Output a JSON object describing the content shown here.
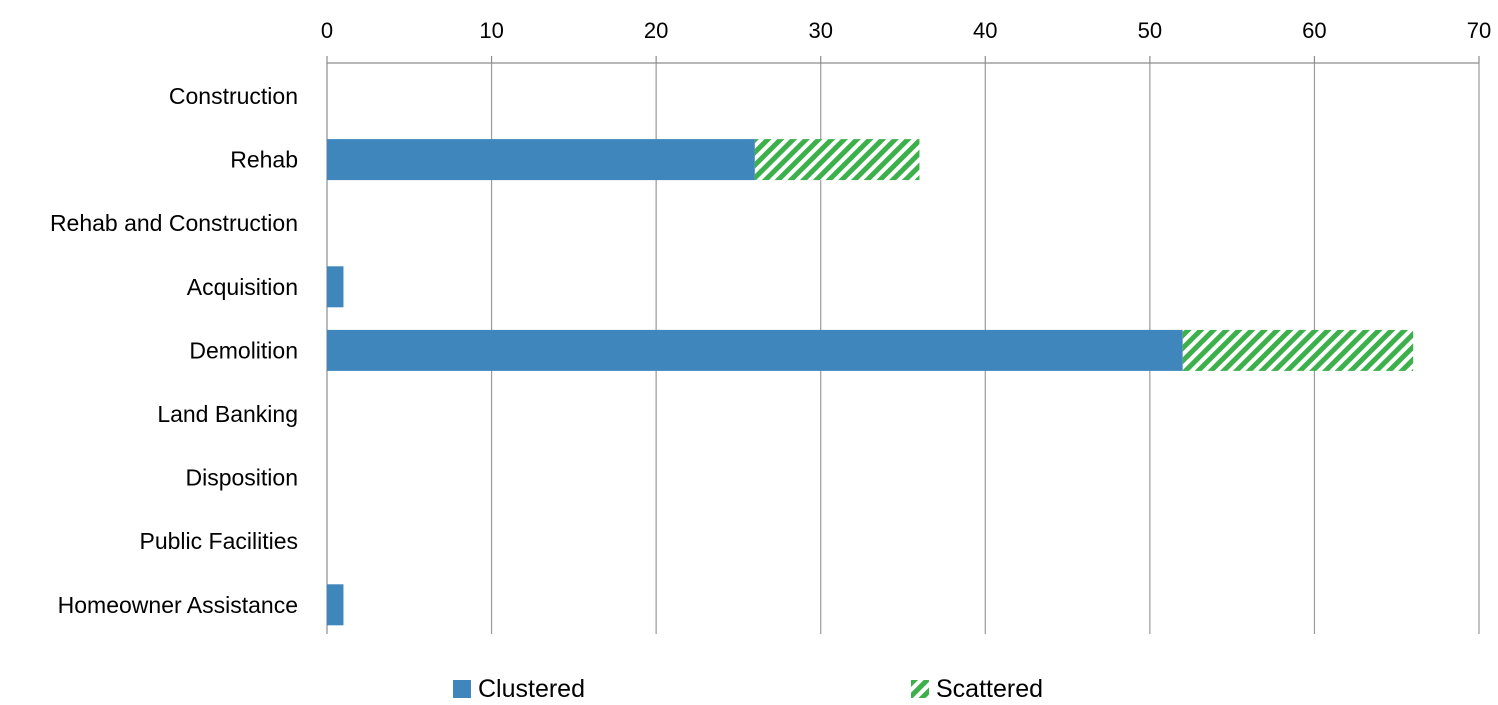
{
  "chart_data": {
    "type": "bar",
    "orientation": "horizontal",
    "stacked": true,
    "categories": [
      "Construction",
      "Rehab",
      "Rehab and Construction",
      "Acquisition",
      "Demolition",
      "Land Banking",
      "Disposition",
      "Public Facilities",
      "Homeowner Assistance"
    ],
    "series": [
      {
        "name": "Clustered",
        "values": [
          0,
          26,
          0,
          1,
          52,
          0,
          0,
          0,
          1
        ],
        "color": "#3f86bd",
        "pattern": "solid"
      },
      {
        "name": "Scattered",
        "values": [
          0,
          10,
          0,
          0,
          14,
          0,
          0,
          0,
          0
        ],
        "color": "#3cb04a",
        "pattern": "diagonal-stripes"
      }
    ],
    "x_axis": {
      "position": "top",
      "min": 0,
      "max": 70,
      "ticks": [
        0,
        10,
        20,
        30,
        40,
        50,
        60,
        70
      ],
      "gridlines": "vertical"
    },
    "legend": {
      "position": "bottom",
      "entries": [
        "Clustered",
        "Scattered"
      ]
    },
    "title": "",
    "xlabel": "",
    "ylabel": ""
  }
}
